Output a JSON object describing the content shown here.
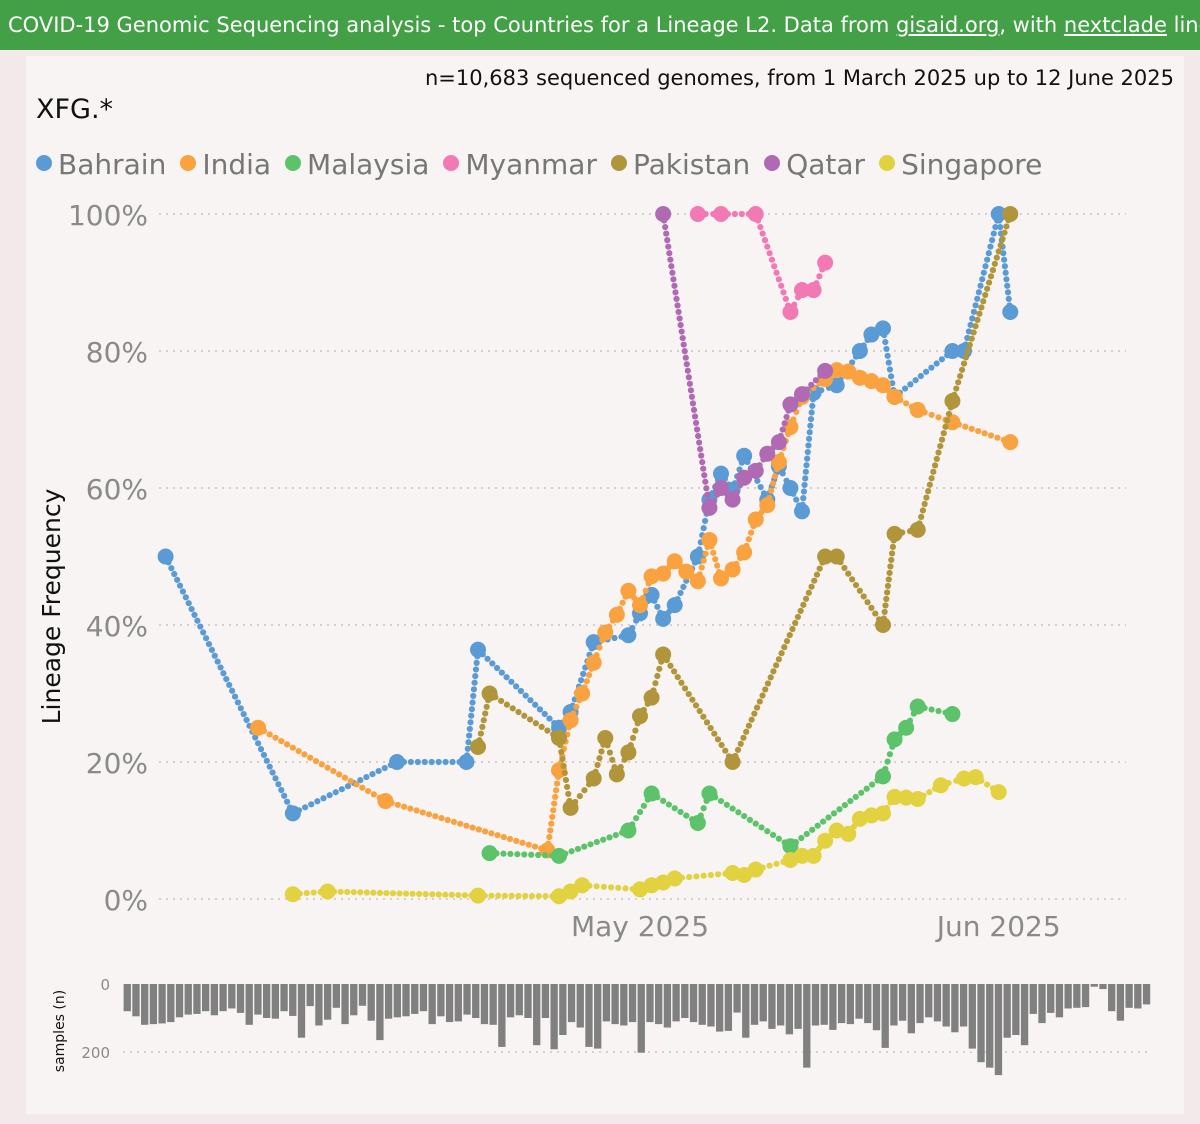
{
  "banner": {
    "prefix": "COVID-19 Genomic Sequencing analysis - top Countries for a Lineage L2. Data from ",
    "link1": "gisaid.org",
    "middle": ", with ",
    "link2": "nextclade",
    "suffix": " lineages Source"
  },
  "chart_data": [
    {
      "type": "line",
      "subtitle": "n=10,683 sequenced genomes, from 1 March 2025 up to 12 June 2025",
      "lineage_label": "XFG.*",
      "ylabel": "Lineage Frequency",
      "xlabel": "",
      "x_ticks": [
        "May 2025",
        "Jun 2025"
      ],
      "x_range": [
        "2025-03-20",
        "2025-06-12"
      ],
      "ylim": [
        0,
        100
      ],
      "y_ticks": [
        "0%",
        "20%",
        "40%",
        "60%",
        "80%",
        "100%"
      ],
      "grid": "horizontal dotted",
      "legend_position": "top-left",
      "series": [
        {
          "name": "Bahrain",
          "color": "#5b9bd5",
          "points": [
            [
              "2025-03-21",
              50
            ],
            [
              "2025-04-01",
              12.5
            ],
            [
              "2025-04-10",
              20
            ],
            [
              "2025-04-16",
              20
            ],
            [
              "2025-04-17",
              36.4
            ],
            [
              "2025-04-24",
              25
            ],
            [
              "2025-04-25",
              27.3
            ],
            [
              "2025-04-27",
              37.5
            ],
            [
              "2025-04-30",
              38.5
            ],
            [
              "2025-05-01",
              41.7
            ],
            [
              "2025-05-02",
              44.4
            ],
            [
              "2025-05-03",
              40.9
            ],
            [
              "2025-05-04",
              42.9
            ],
            [
              "2025-05-06",
              50
            ],
            [
              "2025-05-07",
              58.3
            ],
            [
              "2025-05-08",
              62.1
            ],
            [
              "2025-05-09",
              59.7
            ],
            [
              "2025-05-10",
              64.7
            ],
            [
              "2025-05-12",
              58.3
            ],
            [
              "2025-05-13",
              63.2
            ],
            [
              "2025-05-14",
              60
            ],
            [
              "2025-05-15",
              56.6
            ],
            [
              "2025-05-16",
              73.9
            ],
            [
              "2025-05-18",
              75
            ],
            [
              "2025-05-20",
              80
            ],
            [
              "2025-05-21",
              82.4
            ],
            [
              "2025-05-22",
              83.3
            ],
            [
              "2025-05-23",
              73.3
            ],
            [
              "2025-05-28",
              80
            ],
            [
              "2025-05-29",
              80
            ],
            [
              "2025-06-01",
              100
            ],
            [
              "2025-06-02",
              85.7
            ]
          ]
        },
        {
          "name": "India",
          "color": "#f9a23f",
          "points": [
            [
              "2025-03-29",
              25
            ],
            [
              "2025-04-09",
              14.3
            ],
            [
              "2025-04-23",
              7.1
            ],
            [
              "2025-04-24",
              18.8
            ],
            [
              "2025-04-25",
              26.1
            ],
            [
              "2025-04-26",
              30
            ],
            [
              "2025-04-27",
              34.5
            ],
            [
              "2025-04-28",
              38.9
            ],
            [
              "2025-04-29",
              41.5
            ],
            [
              "2025-04-30",
              45
            ],
            [
              "2025-05-01",
              42.9
            ],
            [
              "2025-05-02",
              47.1
            ],
            [
              "2025-05-03",
              47.5
            ],
            [
              "2025-05-04",
              49.3
            ],
            [
              "2025-05-05",
              47.8
            ],
            [
              "2025-05-06",
              46.4
            ],
            [
              "2025-05-07",
              52.4
            ],
            [
              "2025-05-08",
              46.8
            ],
            [
              "2025-05-09",
              48.1
            ],
            [
              "2025-05-10",
              50.6
            ],
            [
              "2025-05-11",
              55.4
            ],
            [
              "2025-05-12",
              57.5
            ],
            [
              "2025-05-13",
              63.8
            ],
            [
              "2025-05-14",
              68.9
            ],
            [
              "2025-05-15",
              73.3
            ],
            [
              "2025-05-17",
              75.9
            ],
            [
              "2025-05-18",
              77.2
            ],
            [
              "2025-05-19",
              77
            ],
            [
              "2025-05-20",
              76.1
            ],
            [
              "2025-05-21",
              75.6
            ],
            [
              "2025-05-22",
              75
            ],
            [
              "2025-05-23",
              73.3
            ],
            [
              "2025-05-25",
              71.4
            ],
            [
              "2025-05-28",
              69.6
            ],
            [
              "2025-06-02",
              66.7
            ]
          ]
        },
        {
          "name": "Malaysia",
          "color": "#5cc36a",
          "points": [
            [
              "2025-04-18",
              6.7
            ],
            [
              "2025-04-24",
              6.3
            ],
            [
              "2025-04-30",
              10
            ],
            [
              "2025-05-02",
              15.4
            ],
            [
              "2025-05-06",
              11.1
            ],
            [
              "2025-05-07",
              15.4
            ],
            [
              "2025-05-14",
              7.7
            ],
            [
              "2025-05-22",
              17.9
            ],
            [
              "2025-05-23",
              23.3
            ],
            [
              "2025-05-24",
              25
            ],
            [
              "2025-05-25",
              28.1
            ],
            [
              "2025-05-28",
              27
            ]
          ]
        },
        {
          "name": "Myanmar",
          "color": "#f279b4",
          "points": [
            [
              "2025-05-06",
              100
            ],
            [
              "2025-05-08",
              100
            ],
            [
              "2025-05-11",
              100
            ],
            [
              "2025-05-14",
              85.7
            ],
            [
              "2025-05-15",
              88.9
            ],
            [
              "2025-05-16",
              88.9
            ],
            [
              "2025-05-17",
              92.9
            ]
          ]
        },
        {
          "name": "Pakistan",
          "color": "#b1953a",
          "points": [
            [
              "2025-04-17",
              22.2
            ],
            [
              "2025-04-18",
              30
            ],
            [
              "2025-04-24",
              23.5
            ],
            [
              "2025-04-25",
              13.3
            ],
            [
              "2025-04-27",
              17.6
            ],
            [
              "2025-04-28",
              23.5
            ],
            [
              "2025-04-29",
              18.2
            ],
            [
              "2025-04-30",
              21.4
            ],
            [
              "2025-05-01",
              26.7
            ],
            [
              "2025-05-02",
              29.4
            ],
            [
              "2025-05-03",
              35.7
            ],
            [
              "2025-05-09",
              20
            ],
            [
              "2025-05-17",
              50
            ],
            [
              "2025-05-18",
              50
            ],
            [
              "2025-05-22",
              40
            ],
            [
              "2025-05-23",
              53.3
            ],
            [
              "2025-05-25",
              53.9
            ],
            [
              "2025-05-28",
              72.7
            ],
            [
              "2025-06-02",
              100
            ]
          ]
        },
        {
          "name": "Qatar",
          "color": "#b06ab3",
          "points": [
            [
              "2025-05-03",
              100
            ],
            [
              "2025-05-07",
              57.1
            ],
            [
              "2025-05-08",
              60
            ],
            [
              "2025-05-09",
              58.3
            ],
            [
              "2025-05-10",
              61.5
            ],
            [
              "2025-05-11",
              62.5
            ],
            [
              "2025-05-12",
              65
            ],
            [
              "2025-05-13",
              66.7
            ],
            [
              "2025-05-14",
              72.2
            ],
            [
              "2025-05-15",
              73.7
            ],
            [
              "2025-05-17",
              77.1
            ]
          ]
        },
        {
          "name": "Singapore",
          "color": "#e2d240",
          "points": [
            [
              "2025-04-01",
              0.7
            ],
            [
              "2025-04-04",
              1.1
            ],
            [
              "2025-04-17",
              0.5
            ],
            [
              "2025-04-24",
              0.4
            ],
            [
              "2025-04-25",
              1.1
            ],
            [
              "2025-04-26",
              2
            ],
            [
              "2025-05-01",
              1.4
            ],
            [
              "2025-05-02",
              2
            ],
            [
              "2025-05-03",
              2.4
            ],
            [
              "2025-05-04",
              3
            ],
            [
              "2025-05-09",
              3.8
            ],
            [
              "2025-05-10",
              3.5
            ],
            [
              "2025-05-11",
              4.3
            ],
            [
              "2025-05-14",
              5.7
            ],
            [
              "2025-05-15",
              6.3
            ],
            [
              "2025-05-16",
              6.3
            ],
            [
              "2025-05-17",
              8.5
            ],
            [
              "2025-05-18",
              10
            ],
            [
              "2025-05-19",
              9.5
            ],
            [
              "2025-05-20",
              11.7
            ],
            [
              "2025-05-21",
              12.2
            ],
            [
              "2025-05-22",
              12.5
            ],
            [
              "2025-05-23",
              14.9
            ],
            [
              "2025-05-24",
              14.8
            ],
            [
              "2025-05-25",
              14.6
            ],
            [
              "2025-05-27",
              16.6
            ],
            [
              "2025-05-29",
              17.6
            ],
            [
              "2025-05-30",
              17.8
            ],
            [
              "2025-06-01",
              15.6
            ]
          ]
        }
      ]
    },
    {
      "type": "bar",
      "ylabel": "samples (n)",
      "y_ticks": [
        "0",
        "200"
      ],
      "ylim": [
        0,
        260
      ],
      "orientation": "downward",
      "bar_color": "#808080",
      "values": [
        80,
        95,
        120,
        118,
        116,
        112,
        98,
        90,
        88,
        80,
        92,
        80,
        72,
        85,
        120,
        90,
        100,
        102,
        80,
        94,
        158,
        65,
        122,
        105,
        70,
        118,
        92,
        64,
        108,
        165,
        102,
        98,
        95,
        88,
        80,
        118,
        95,
        112,
        110,
        90,
        100,
        118,
        120,
        185,
        98,
        92,
        100,
        180,
        100,
        192,
        150,
        112,
        128,
        185,
        190,
        110,
        118,
        122,
        112,
        202,
        112,
        118,
        128,
        110,
        100,
        112,
        120,
        125,
        140,
        138,
        84,
        158,
        120,
        110,
        132,
        122,
        148,
        132,
        246,
        122,
        120,
        135,
        115,
        118,
        102,
        115,
        136,
        188,
        122,
        108,
        145,
        115,
        98,
        110,
        125,
        142,
        125,
        190,
        230,
        246,
        268,
        158,
        150,
        180,
        88,
        115,
        85,
        98,
        72,
        70,
        68,
        8,
        15,
        80,
        108,
        70,
        72,
        60
      ]
    }
  ]
}
